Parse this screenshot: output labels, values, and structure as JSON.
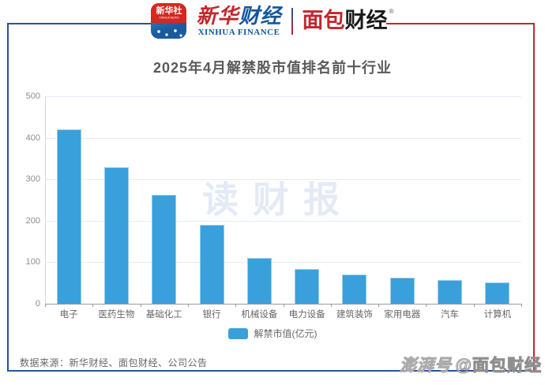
{
  "header": {
    "xinhua_app_icon": {
      "cn": "新华社",
      "en": "XINHUA NEWS"
    },
    "xinhua_finance_logo": {
      "cn_red": "新华",
      "cn_blue": "财经",
      "en": "XINHUA FINANCE"
    },
    "bread_finance_logo": {
      "cn_red": "面包",
      "cn_black": "财经",
      "reg_mark": "®"
    }
  },
  "title": "2025年4月解禁股市值排名前十行业",
  "chart_data": {
    "type": "bar",
    "title": "2025年4月解禁股市值排名前十行业",
    "categories": [
      "电子",
      "医药生物",
      "基础化工",
      "银行",
      "机械设备",
      "电力设备",
      "建筑装饰",
      "家用电器",
      "汽车",
      "计算机"
    ],
    "values": [
      420,
      328,
      262,
      190,
      110,
      84,
      70,
      62,
      57,
      51
    ],
    "legend": "解禁市值(亿元)",
    "xlabel": "",
    "ylabel": "",
    "ylim": [
      0,
      500
    ],
    "yticks": [
      0,
      100,
      200,
      300,
      400,
      500
    ],
    "grid": true,
    "legend_position": "bottom",
    "bar_color": "#3AA0DB"
  },
  "watermarks": {
    "center": "读财报",
    "bottom_right_prefix": "澎湃号",
    "bottom_right_handle": "@面包财经"
  },
  "footer": {
    "source": "数据来源：新华财经、面包财经、公司公告"
  },
  "colors": {
    "brand_blue": "#24549B",
    "brand_red": "#C1272D",
    "bar_blue": "#3AA0DB"
  }
}
